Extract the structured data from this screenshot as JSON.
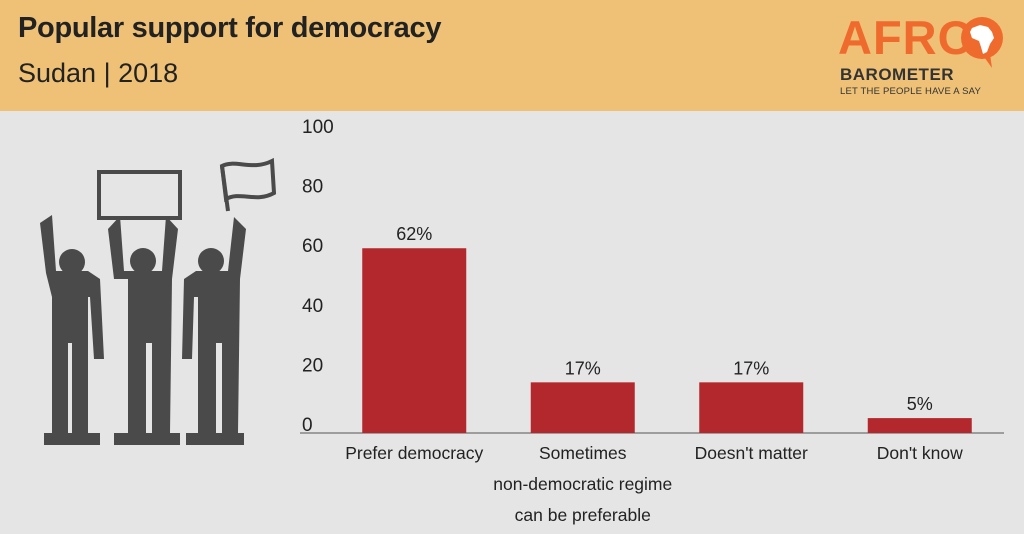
{
  "header": {
    "title": "Popular support for democracy",
    "subtitle": "Sudan  |  2018"
  },
  "logo": {
    "afro": "AFRO",
    "barometer": "BAROMETER",
    "tagline": "LET THE PEOPLE HAVE A SAY"
  },
  "colors": {
    "header_bg": "#eec176",
    "bar": "#b2282d",
    "background": "#e5e5e5",
    "logo_orange": "#ef6b2d",
    "illustration": "#4a4a4a"
  },
  "illustration": {
    "icon": "protesters-with-signs-icon"
  },
  "chart_data": {
    "type": "bar",
    "title": "Popular support for democracy",
    "subtitle": "Sudan | 2018",
    "categories": [
      [
        "Prefer democracy"
      ],
      [
        "Sometimes",
        "non-democratic regime",
        "can be preferable"
      ],
      [
        "Doesn't matter"
      ],
      [
        "Don't know"
      ]
    ],
    "values": [
      62,
      17,
      17,
      5
    ],
    "value_labels": [
      "62%",
      "17%",
      "17%",
      "5%"
    ],
    "yticks": [
      0,
      20,
      40,
      60,
      80,
      100
    ],
    "ylim": [
      0,
      100
    ],
    "grid": false,
    "legend": "none"
  }
}
